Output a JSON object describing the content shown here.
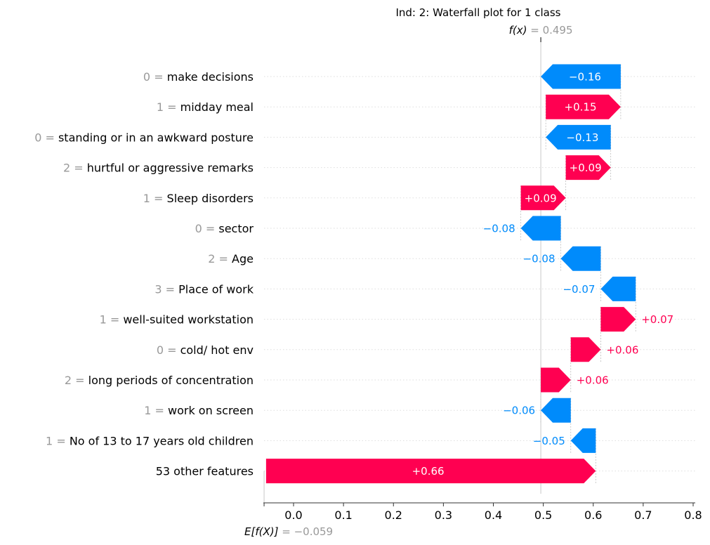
{
  "chart_data": {
    "type": "waterfall",
    "title": "Ind: 2: Waterfall plot for 1 class",
    "fx_label": "f(x)",
    "fx_value": "0.495",
    "fx": 0.495,
    "base_label": "E[f(X)]",
    "base_value_text": "−0.059",
    "base_value": -0.059,
    "xlim": [
      -0.059,
      0.8
    ],
    "x_ticks": [
      0.0,
      0.1,
      0.2,
      0.3,
      0.4,
      0.5,
      0.6,
      0.7,
      0.8
    ],
    "x_tick_labels": [
      "0.0",
      "0.1",
      "0.2",
      "0.3",
      "0.4",
      "0.5",
      "0.6",
      "0.7",
      "0.8"
    ],
    "colors": {
      "positive": "#ff0051",
      "negative": "#008bfb",
      "grid": "#dddddd",
      "muted": "#999999"
    },
    "features": [
      {
        "value": "0",
        "name": "make decisions",
        "contrib": -0.16,
        "label": "−0.16"
      },
      {
        "value": "1",
        "name": "midday meal",
        "contrib": 0.15,
        "label": "+0.15"
      },
      {
        "value": "0",
        "name": "standing or in an awkward posture",
        "contrib": -0.13,
        "label": "−0.13"
      },
      {
        "value": "2",
        "name": "hurtful or aggressive remarks",
        "contrib": 0.09,
        "label": "+0.09"
      },
      {
        "value": "1",
        "name": "Sleep disorders",
        "contrib": 0.09,
        "label": "+0.09"
      },
      {
        "value": "0",
        "name": "sector",
        "contrib": -0.08,
        "label": "−0.08"
      },
      {
        "value": "2",
        "name": "Age",
        "contrib": -0.08,
        "label": "−0.08"
      },
      {
        "value": "3",
        "name": "Place of work",
        "contrib": -0.07,
        "label": "−0.07"
      },
      {
        "value": "1",
        "name": "well-suited workstation",
        "contrib": 0.07,
        "label": "+0.07"
      },
      {
        "value": "0",
        "name": "cold/ hot env",
        "contrib": 0.06,
        "label": "+0.06"
      },
      {
        "value": "2",
        "name": "long periods of concentration",
        "contrib": 0.06,
        "label": "+0.06"
      },
      {
        "value": "1",
        "name": "work on screen",
        "contrib": -0.06,
        "label": "−0.06"
      },
      {
        "value": "1",
        "name": "No of 13 to 17 years old children",
        "contrib": -0.05,
        "label": "−0.05"
      },
      {
        "value": "",
        "name": "53 other features",
        "contrib": 0.66,
        "label": "+0.66"
      }
    ]
  }
}
